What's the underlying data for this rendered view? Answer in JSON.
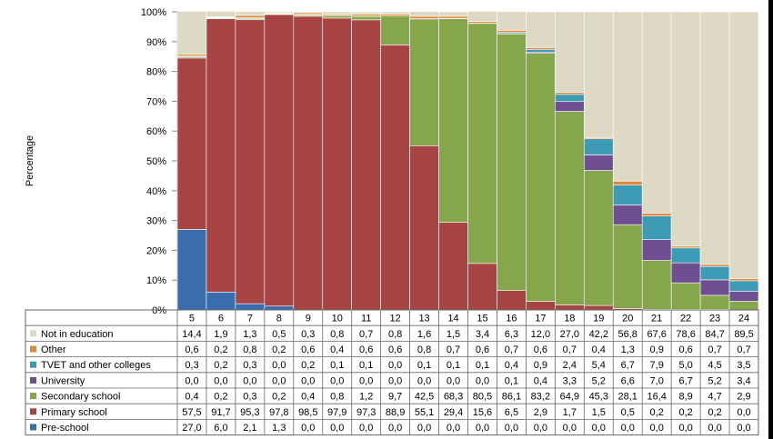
{
  "chart_data": {
    "type": "bar",
    "stacked": true,
    "ylabel": "Percentage",
    "xlabel": "",
    "ylim": [
      0,
      100
    ],
    "yticks": [
      "0%",
      "10%",
      "20%",
      "30%",
      "40%",
      "50%",
      "60%",
      "70%",
      "80%",
      "90%",
      "100%"
    ],
    "categories": [
      "5",
      "6",
      "7",
      "8",
      "9",
      "10",
      "11",
      "12",
      "13",
      "14",
      "15",
      "16",
      "17",
      "18",
      "19",
      "20",
      "21",
      "22",
      "23",
      "24"
    ],
    "series": [
      {
        "name": "Pre-school",
        "color": "#3A6DAE",
        "values": [
          27.0,
          6.0,
          2.1,
          1.3,
          0.0,
          0.0,
          0.0,
          0.0,
          0.0,
          0.0,
          0.0,
          0.0,
          0.0,
          0.0,
          0.0,
          0.0,
          0.0,
          0.0,
          0.0,
          0.0
        ],
        "labels": [
          "27,0",
          "6,0",
          "2,1",
          "1,3",
          "0,0",
          "0,0",
          "0,0",
          "0,0",
          "0,0",
          "0,0",
          "0,0",
          "0,0",
          "0,0",
          "0,0",
          "0,0",
          "0,0",
          "0,0",
          "0,0",
          "0,0",
          "0,0"
        ]
      },
      {
        "name": "Primary school",
        "color": "#A84443",
        "values": [
          57.5,
          91.7,
          95.3,
          97.8,
          98.5,
          97.9,
          97.3,
          88.9,
          55.1,
          29.4,
          15.6,
          6.5,
          2.9,
          1.7,
          1.5,
          0.5,
          0.2,
          0.2,
          0.2,
          0.0
        ],
        "labels": [
          "57,5",
          "91,7",
          "95,3",
          "97,8",
          "98,5",
          "97,9",
          "97,3",
          "88,9",
          "55,1",
          "29,4",
          "15,6",
          "6,5",
          "2,9",
          "1,7",
          "1,5",
          "0,5",
          "0,2",
          "0,2",
          "0,2",
          "0,0"
        ]
      },
      {
        "name": "Secondary school",
        "color": "#86A64B",
        "values": [
          0.4,
          0.2,
          0.3,
          0.2,
          0.4,
          0.8,
          1.2,
          9.7,
          42.5,
          68.3,
          80.5,
          86.1,
          83.2,
          64.9,
          45.3,
          28.1,
          16.4,
          8.9,
          4.7,
          2.9
        ],
        "labels": [
          "0,4",
          "0,2",
          "0,3",
          "0,2",
          "0,4",
          "0,8",
          "1,2",
          "9,7",
          "42,5",
          "68,3",
          "80,5",
          "86,1",
          "83,2",
          "64,9",
          "45,3",
          "28,1",
          "16,4",
          "8,9",
          "4,7",
          "2,9"
        ]
      },
      {
        "name": "University",
        "color": "#6F4F92",
        "values": [
          0.0,
          0.0,
          0.0,
          0.0,
          0.0,
          0.0,
          0.0,
          0.0,
          0.0,
          0.0,
          0.0,
          0.1,
          0.4,
          3.3,
          5.2,
          6.6,
          7.0,
          6.7,
          5.2,
          3.4
        ],
        "labels": [
          "0,0",
          "0,0",
          "0,0",
          "0,0",
          "0,0",
          "0,0",
          "0,0",
          "0,0",
          "0,0",
          "0,0",
          "0,0",
          "0,1",
          "0,4",
          "3,3",
          "5,2",
          "6,6",
          "7,0",
          "6,7",
          "5,2",
          "3,4"
        ]
      },
      {
        "name": "TVET and other colleges",
        "color": "#3E9BB5",
        "values": [
          0.3,
          0.2,
          0.3,
          0.0,
          0.2,
          0.1,
          0.1,
          0.0,
          0.1,
          0.1,
          0.1,
          0.4,
          0.9,
          2.4,
          5.4,
          6.7,
          7.9,
          5.0,
          4.5,
          3.5
        ],
        "labels": [
          "0,3",
          "0,2",
          "0,3",
          "0,0",
          "0,2",
          "0,1",
          "0,1",
          "0,0",
          "0,1",
          "0,1",
          "0,1",
          "0,4",
          "0,9",
          "2,4",
          "5,4",
          "6,7",
          "7,9",
          "5,0",
          "4,5",
          "3,5"
        ]
      },
      {
        "name": "Other",
        "color": "#E0883A",
        "values": [
          0.6,
          0.2,
          0.8,
          0.2,
          0.6,
          0.4,
          0.6,
          0.6,
          0.8,
          0.7,
          0.6,
          0.7,
          0.6,
          0.7,
          0.4,
          1.3,
          0.9,
          0.6,
          0.7,
          0.7
        ],
        "labels": [
          "0,6",
          "0,2",
          "0,8",
          "0,2",
          "0,6",
          "0,4",
          "0,6",
          "0,6",
          "0,8",
          "0,7",
          "0,6",
          "0,7",
          "0,6",
          "0,7",
          "0,4",
          "1,3",
          "0,9",
          "0,6",
          "0,7",
          "0,7"
        ]
      },
      {
        "name": "Not in education",
        "color": "#DDD9C4",
        "values": [
          14.4,
          1.9,
          1.3,
          0.5,
          0.3,
          0.8,
          0.7,
          0.8,
          1.6,
          1.5,
          3.4,
          6.3,
          12.0,
          27.0,
          42.2,
          56.8,
          67.6,
          78.6,
          84.7,
          89.5
        ],
        "labels": [
          "14,4",
          "1,9",
          "1,3",
          "0,5",
          "0,3",
          "0,8",
          "0,7",
          "0,8",
          "1,6",
          "1,5",
          "3,4",
          "6,3",
          "12,0",
          "27,0",
          "42,2",
          "56,8",
          "67,6",
          "78,6",
          "84,7",
          "89,5"
        ]
      }
    ],
    "table_row_order": [
      "Not in education",
      "Other",
      "TVET and other colleges",
      "University",
      "Secondary school",
      "Primary school",
      "Pre-school"
    ],
    "grid": false,
    "legend": "data-table"
  }
}
